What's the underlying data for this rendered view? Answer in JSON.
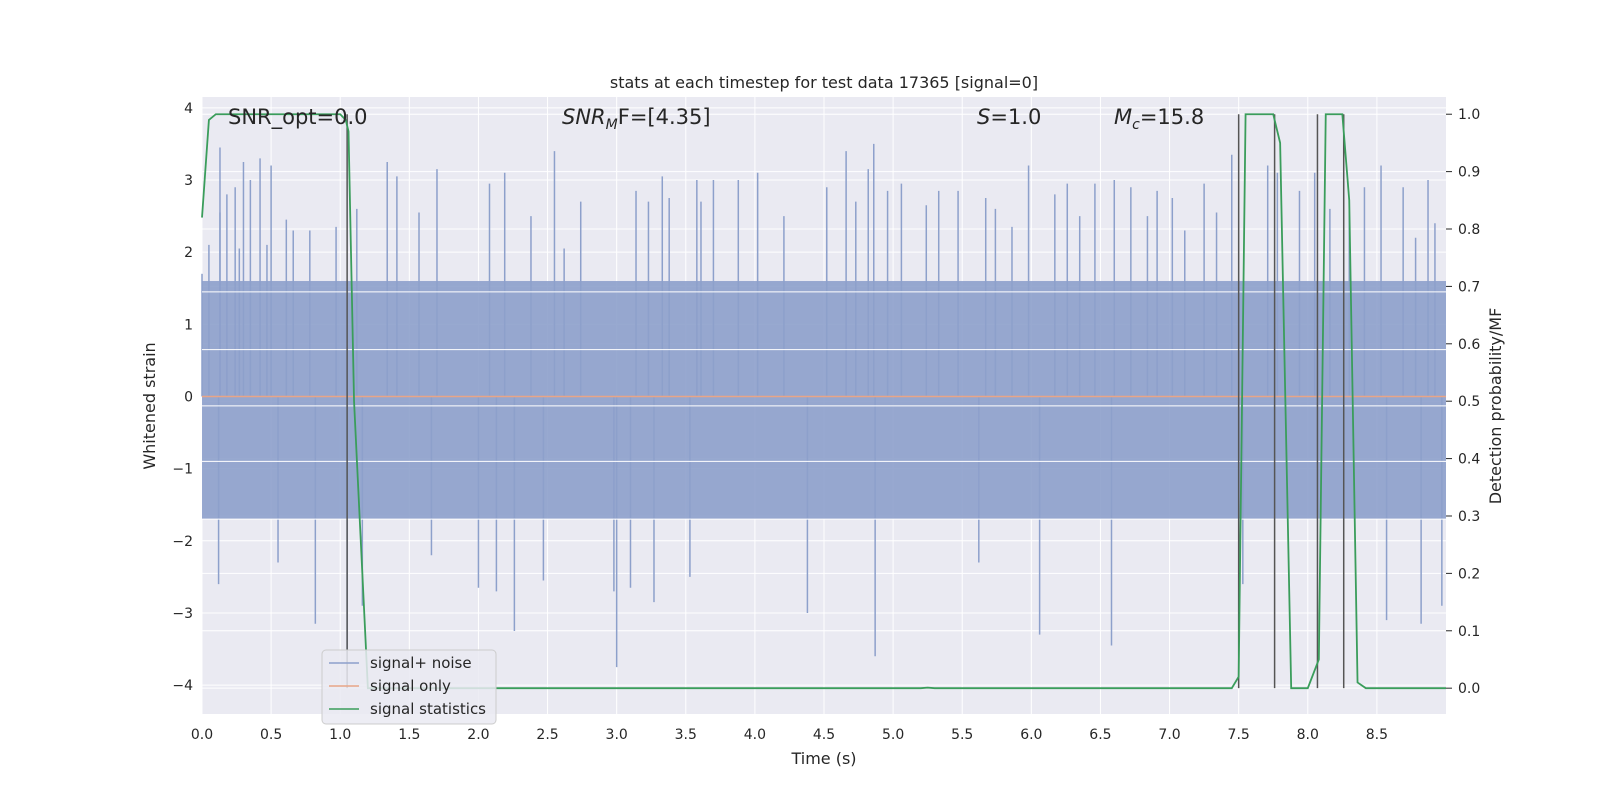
{
  "chart_data": {
    "type": "line",
    "title": "stats at each timestep for test data 17365 [signal=0]",
    "xlabel": "Time (s)",
    "ylabel": "Whitened strain",
    "y2label": "Detection probability/MF",
    "xlim": [
      0.0,
      9.0
    ],
    "ylim": [
      -4.4,
      4.15
    ],
    "y2lim": [
      -0.045,
      1.03
    ],
    "xticks": [
      0.0,
      0.5,
      1.0,
      1.5,
      2.0,
      2.5,
      3.0,
      3.5,
      4.0,
      4.5,
      5.0,
      5.5,
      6.0,
      6.5,
      7.0,
      7.5,
      8.0,
      8.5
    ],
    "xtick_labels": [
      "0.0",
      "0.5",
      "1.0",
      "1.5",
      "2.0",
      "2.5",
      "3.0",
      "3.5",
      "4.0",
      "4.5",
      "5.0",
      "5.5",
      "6.0",
      "6.5",
      "7.0",
      "7.5",
      "8.0",
      "8.5"
    ],
    "yticks": [
      -4,
      -3,
      -2,
      -1,
      0,
      1,
      2,
      3,
      4
    ],
    "ytick_labels": [
      "−4",
      "−3",
      "−2",
      "−1",
      "0",
      "1",
      "2",
      "3",
      "4"
    ],
    "y2ticks": [
      0.0,
      0.1,
      0.2,
      0.3,
      0.4,
      0.5,
      0.6,
      0.7,
      0.8,
      0.9,
      1.0
    ],
    "y2tick_labels": [
      "0.0",
      "0.1",
      "0.2",
      "0.3",
      "0.4",
      "0.5",
      "0.6",
      "0.7",
      "0.8",
      "0.9",
      "1.0"
    ],
    "grid": true,
    "legend_position": "lower-left",
    "legend": [
      {
        "name": "signal+ noise",
        "color": "#8da0cb"
      },
      {
        "name": "signal only",
        "color": "#e8a587"
      },
      {
        "name": "signal statistics",
        "color": "#3a9d5b"
      }
    ],
    "annotations": {
      "snr_opt": {
        "text": "SNR_opt=0.0"
      },
      "snr_mf": {
        "prefix": "SNR",
        "sub": "M",
        "suffix": "F=[4.35]"
      },
      "s_value": {
        "prefix": "S",
        "suffix": "=1.0"
      },
      "mc_value": {
        "prefix": "M",
        "sub": "c",
        "suffix": "=15.8"
      }
    },
    "series": [
      {
        "name": "signal+ noise",
        "color": "#8da0cb",
        "band_min": -1.7,
        "band_max": 1.6,
        "values": [
          [
            0.0,
            1.7
          ],
          [
            0.05,
            2.1
          ],
          [
            0.12,
            -2.6
          ],
          [
            0.13,
            2.55
          ],
          [
            0.13,
            3.45
          ],
          [
            0.18,
            2.8
          ],
          [
            0.24,
            2.9
          ],
          [
            0.27,
            2.05
          ],
          [
            0.3,
            3.25
          ],
          [
            0.35,
            3.0
          ],
          [
            0.42,
            3.3
          ],
          [
            0.47,
            2.1
          ],
          [
            0.5,
            3.2
          ],
          [
            0.55,
            -2.3
          ],
          [
            0.61,
            2.45
          ],
          [
            0.66,
            2.3
          ],
          [
            0.78,
            2.3
          ],
          [
            0.82,
            -3.15
          ],
          [
            0.97,
            2.35
          ],
          [
            1.05,
            -3.8
          ],
          [
            1.12,
            2.6
          ],
          [
            1.16,
            -2.9
          ],
          [
            1.34,
            3.25
          ],
          [
            1.41,
            3.05
          ],
          [
            1.57,
            2.55
          ],
          [
            1.66,
            -2.2
          ],
          [
            1.7,
            3.15
          ],
          [
            2.0,
            -2.65
          ],
          [
            2.08,
            2.95
          ],
          [
            2.13,
            -2.7
          ],
          [
            2.19,
            3.1
          ],
          [
            2.26,
            -3.25
          ],
          [
            2.38,
            2.5
          ],
          [
            2.47,
            -2.55
          ],
          [
            2.55,
            3.4
          ],
          [
            2.62,
            2.05
          ],
          [
            2.74,
            2.7
          ],
          [
            2.98,
            -2.7
          ],
          [
            3.0,
            -3.75
          ],
          [
            3.1,
            -2.65
          ],
          [
            3.14,
            2.85
          ],
          [
            3.23,
            2.7
          ],
          [
            3.27,
            -2.85
          ],
          [
            3.33,
            3.05
          ],
          [
            3.38,
            2.75
          ],
          [
            3.53,
            -2.5
          ],
          [
            3.58,
            3.0
          ],
          [
            3.61,
            2.7
          ],
          [
            3.7,
            3.0
          ],
          [
            3.88,
            3.0
          ],
          [
            4.02,
            3.1
          ],
          [
            4.21,
            2.5
          ],
          [
            4.38,
            -3.0
          ],
          [
            4.52,
            2.9
          ],
          [
            4.66,
            3.4
          ],
          [
            4.73,
            2.7
          ],
          [
            4.82,
            3.15
          ],
          [
            4.86,
            3.5
          ],
          [
            4.87,
            -3.6
          ],
          [
            4.96,
            2.85
          ],
          [
            5.06,
            2.95
          ],
          [
            5.24,
            2.65
          ],
          [
            5.33,
            2.85
          ],
          [
            5.47,
            2.85
          ],
          [
            5.62,
            -2.3
          ],
          [
            5.67,
            2.75
          ],
          [
            5.74,
            2.6
          ],
          [
            5.86,
            2.35
          ],
          [
            5.98,
            3.2
          ],
          [
            6.06,
            -3.3
          ],
          [
            6.17,
            2.8
          ],
          [
            6.26,
            2.95
          ],
          [
            6.35,
            2.5
          ],
          [
            6.46,
            2.95
          ],
          [
            6.58,
            -3.45
          ],
          [
            6.6,
            3.0
          ],
          [
            6.72,
            2.9
          ],
          [
            6.84,
            2.5
          ],
          [
            6.91,
            2.85
          ],
          [
            7.02,
            2.75
          ],
          [
            7.11,
            2.3
          ],
          [
            7.25,
            2.95
          ],
          [
            7.34,
            2.55
          ],
          [
            7.45,
            3.35
          ],
          [
            7.53,
            -2.6
          ],
          [
            7.71,
            3.2
          ],
          [
            7.78,
            3.1
          ],
          [
            7.94,
            2.85
          ],
          [
            8.05,
            3.1
          ],
          [
            8.16,
            2.6
          ],
          [
            8.3,
            2.75
          ],
          [
            8.41,
            2.9
          ],
          [
            8.53,
            3.2
          ],
          [
            8.57,
            -3.1
          ],
          [
            8.69,
            2.9
          ],
          [
            8.78,
            2.2
          ],
          [
            8.82,
            -3.15
          ],
          [
            8.87,
            3.0
          ],
          [
            8.92,
            2.4
          ],
          [
            8.97,
            -2.9
          ]
        ]
      },
      {
        "name": "signal only",
        "color": "#e8a587",
        "values": [
          [
            0.0,
            0.0
          ],
          [
            9.0,
            0.0
          ]
        ]
      },
      {
        "name": "signal statistics",
        "color": "#3a9d5b",
        "axis": "right",
        "values": [
          [
            0.0,
            0.82
          ],
          [
            0.05,
            0.99
          ],
          [
            0.1,
            1.0
          ],
          [
            1.0,
            1.0
          ],
          [
            1.04,
            0.99
          ],
          [
            1.06,
            0.97
          ],
          [
            1.1,
            0.5
          ],
          [
            1.2,
            0.0
          ],
          [
            5.2,
            0.0
          ],
          [
            5.25,
            0.001
          ],
          [
            5.3,
            0.0
          ],
          [
            7.45,
            0.0
          ],
          [
            7.5,
            0.02
          ],
          [
            7.55,
            1.0
          ],
          [
            7.75,
            1.0
          ],
          [
            7.8,
            0.95
          ],
          [
            7.88,
            0.0
          ],
          [
            8.0,
            0.0
          ],
          [
            8.08,
            0.05
          ],
          [
            8.13,
            1.0
          ],
          [
            8.25,
            1.0
          ],
          [
            8.3,
            0.85
          ],
          [
            8.36,
            0.01
          ],
          [
            8.42,
            0.0
          ],
          [
            9.0,
            0.0
          ]
        ]
      }
    ],
    "vertical_lines": {
      "color": "#555555",
      "x": [
        1.05,
        7.5,
        7.76,
        8.07,
        8.26
      ],
      "y2_top": 1.0,
      "y2_bottom": 0.0
    },
    "extra_horizontal_lines": [
      1.45,
      0.65,
      -0.13,
      -0.9,
      -1.7
    ],
    "plot_background": "#eaeaf2"
  }
}
